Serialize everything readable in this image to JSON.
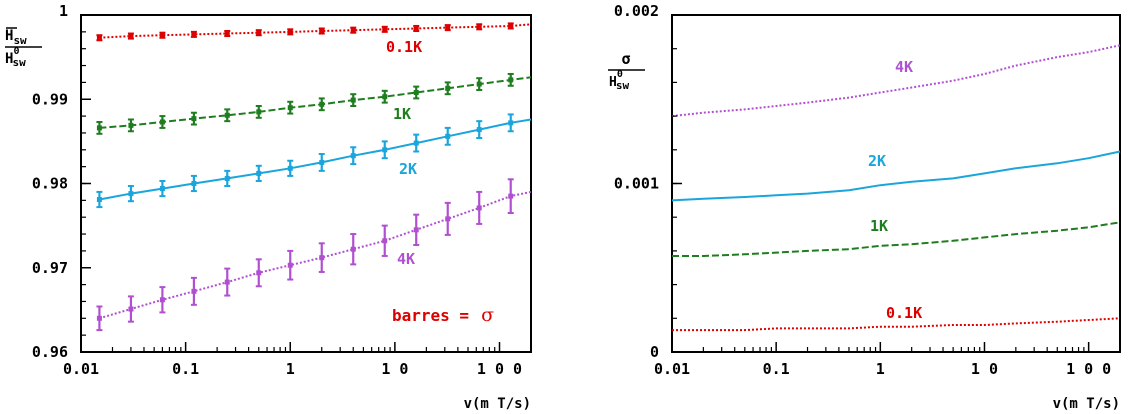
{
  "chart_data": [
    {
      "type": "line",
      "x_scale": "log",
      "xlim": [
        0.01,
        200
      ],
      "ylim": [
        0.96,
        1.0
      ],
      "grid": false,
      "xlabel": "v(m T/s)",
      "ylabel": {
        "num_bar": "H",
        "num_sub": "sw",
        "den": "H",
        "den_sup": "0",
        "den_sub": "sw"
      },
      "x_ticks": [
        {
          "v": 0.01,
          "label": "0.01"
        },
        {
          "v": 0.1,
          "label": "0.1"
        },
        {
          "v": 1,
          "label": "1"
        },
        {
          "v": 10,
          "label": "1 0"
        },
        {
          "v": 100,
          "label": "1 0 0"
        }
      ],
      "y_ticks": [
        {
          "v": 1.0,
          "label": "1"
        },
        {
          "v": 0.99,
          "label": "0.99"
        },
        {
          "v": 0.98,
          "label": "0.98"
        },
        {
          "v": 0.97,
          "label": "0.97"
        },
        {
          "v": 0.96,
          "label": "0.96"
        }
      ],
      "annotation": {
        "text": "barres =",
        "symbol": "σ",
        "color": "#dd0000"
      },
      "series": [
        {
          "label": "0.1K",
          "color": "#dd0000",
          "dash": "dotted",
          "x": [
            0.015,
            0.03,
            0.06,
            0.12,
            0.25,
            0.5,
            1,
            2,
            4,
            8,
            16,
            32,
            64,
            128
          ],
          "y": [
            0.9973,
            0.9975,
            0.9976,
            0.9977,
            0.9978,
            0.9979,
            0.998,
            0.9981,
            0.9982,
            0.9983,
            0.9984,
            0.9985,
            0.9986,
            0.9987
          ],
          "err": [
            0.0003,
            0.0003,
            0.0003,
            0.0003,
            0.0003,
            0.0003,
            0.0003,
            0.0003,
            0.0003,
            0.0003,
            0.0003,
            0.0003,
            0.0003,
            0.0003
          ],
          "line_end": [
            200,
            0.9989
          ]
        },
        {
          "label": "1K",
          "color": "#1e7d1e",
          "dash": "dashed",
          "x": [
            0.015,
            0.03,
            0.06,
            0.12,
            0.25,
            0.5,
            1,
            2,
            4,
            8,
            16,
            32,
            64,
            128
          ],
          "y": [
            0.9866,
            0.9869,
            0.9873,
            0.9877,
            0.9881,
            0.9885,
            0.989,
            0.9894,
            0.9899,
            0.9903,
            0.9908,
            0.9913,
            0.9918,
            0.9923
          ],
          "err": [
            0.0007,
            0.0007,
            0.0007,
            0.0007,
            0.0007,
            0.0007,
            0.0007,
            0.0007,
            0.0007,
            0.0007,
            0.0007,
            0.0007,
            0.0007,
            0.0007
          ],
          "line_end": [
            200,
            0.9926
          ]
        },
        {
          "label": "2K",
          "color": "#1aa5dc",
          "dash": "solid",
          "x": [
            0.015,
            0.03,
            0.06,
            0.12,
            0.25,
            0.5,
            1,
            2,
            4,
            8,
            16,
            32,
            64,
            128
          ],
          "y": [
            0.9781,
            0.9788,
            0.9794,
            0.98,
            0.9806,
            0.9812,
            0.9818,
            0.9825,
            0.9833,
            0.984,
            0.9848,
            0.9856,
            0.9864,
            0.9872
          ],
          "err": [
            0.0009,
            0.0009,
            0.0009,
            0.0009,
            0.0009,
            0.0009,
            0.0009,
            0.001,
            0.001,
            0.001,
            0.001,
            0.001,
            0.001,
            0.001
          ],
          "line_end": [
            200,
            0.9876
          ]
        },
        {
          "label": "4K",
          "color": "#b050d0",
          "dash": "dotted",
          "x": [
            0.015,
            0.03,
            0.06,
            0.12,
            0.25,
            0.5,
            1,
            2,
            4,
            8,
            16,
            32,
            64,
            128
          ],
          "y": [
            0.964,
            0.9651,
            0.9662,
            0.9672,
            0.9683,
            0.9694,
            0.9703,
            0.9712,
            0.9722,
            0.9732,
            0.9745,
            0.9758,
            0.9771,
            0.9785
          ],
          "err": [
            0.0014,
            0.0015,
            0.0015,
            0.0016,
            0.0016,
            0.0016,
            0.0017,
            0.0017,
            0.0018,
            0.0018,
            0.0018,
            0.0019,
            0.0019,
            0.002
          ],
          "line_end": [
            200,
            0.979
          ]
        }
      ]
    },
    {
      "type": "line",
      "x_scale": "log",
      "xlim": [
        0.01,
        200
      ],
      "ylim": [
        0,
        0.002
      ],
      "grid": false,
      "xlabel": "v(m T/s)",
      "ylabel": {
        "num": "σ",
        "den": "H",
        "den_sup": "0",
        "den_sub": "sw"
      },
      "x_ticks": [
        {
          "v": 0.01,
          "label": "0.01"
        },
        {
          "v": 0.1,
          "label": "0.1"
        },
        {
          "v": 1,
          "label": "1"
        },
        {
          "v": 10,
          "label": "1 0"
        },
        {
          "v": 100,
          "label": "1 0 0"
        }
      ],
      "y_ticks": [
        {
          "v": 0.002,
          "label": "0.002"
        },
        {
          "v": 0.001,
          "label": "0.001"
        },
        {
          "v": 0,
          "label": "0"
        }
      ],
      "series": [
        {
          "label": "4K",
          "color": "#b050d0",
          "dash": "dotted",
          "x": [
            0.01,
            0.02,
            0.05,
            0.1,
            0.2,
            0.5,
            1,
            2,
            5,
            10,
            20,
            50,
            100,
            200
          ],
          "y": [
            0.0014,
            0.00142,
            0.00144,
            0.00146,
            0.00148,
            0.00151,
            0.00154,
            0.00157,
            0.00161,
            0.00165,
            0.0017,
            0.00175,
            0.00178,
            0.00182
          ]
        },
        {
          "label": "2K",
          "color": "#1aa5dc",
          "dash": "solid",
          "x": [
            0.01,
            0.02,
            0.05,
            0.1,
            0.2,
            0.5,
            1,
            2,
            5,
            10,
            20,
            50,
            100,
            200
          ],
          "y": [
            0.0009,
            0.00091,
            0.00092,
            0.00093,
            0.00094,
            0.00096,
            0.00099,
            0.00101,
            0.00103,
            0.00106,
            0.00109,
            0.00112,
            0.00115,
            0.00119
          ]
        },
        {
          "label": "1K",
          "color": "#1e7d1e",
          "dash": "dashed",
          "x": [
            0.01,
            0.02,
            0.05,
            0.1,
            0.2,
            0.5,
            1,
            2,
            5,
            10,
            20,
            50,
            100,
            200
          ],
          "y": [
            0.00057,
            0.00057,
            0.00058,
            0.00059,
            0.0006,
            0.00061,
            0.00063,
            0.00064,
            0.00066,
            0.00068,
            0.0007,
            0.00072,
            0.00074,
            0.00077
          ]
        },
        {
          "label": "0.1K",
          "color": "#dd0000",
          "dash": "dotted",
          "x": [
            0.01,
            0.02,
            0.05,
            0.1,
            0.2,
            0.5,
            1,
            2,
            5,
            10,
            20,
            50,
            100,
            200
          ],
          "y": [
            0.00013,
            0.00013,
            0.00013,
            0.00014,
            0.00014,
            0.00014,
            0.00015,
            0.00015,
            0.00016,
            0.00016,
            0.00017,
            0.00018,
            0.00019,
            0.0002
          ]
        }
      ]
    }
  ]
}
